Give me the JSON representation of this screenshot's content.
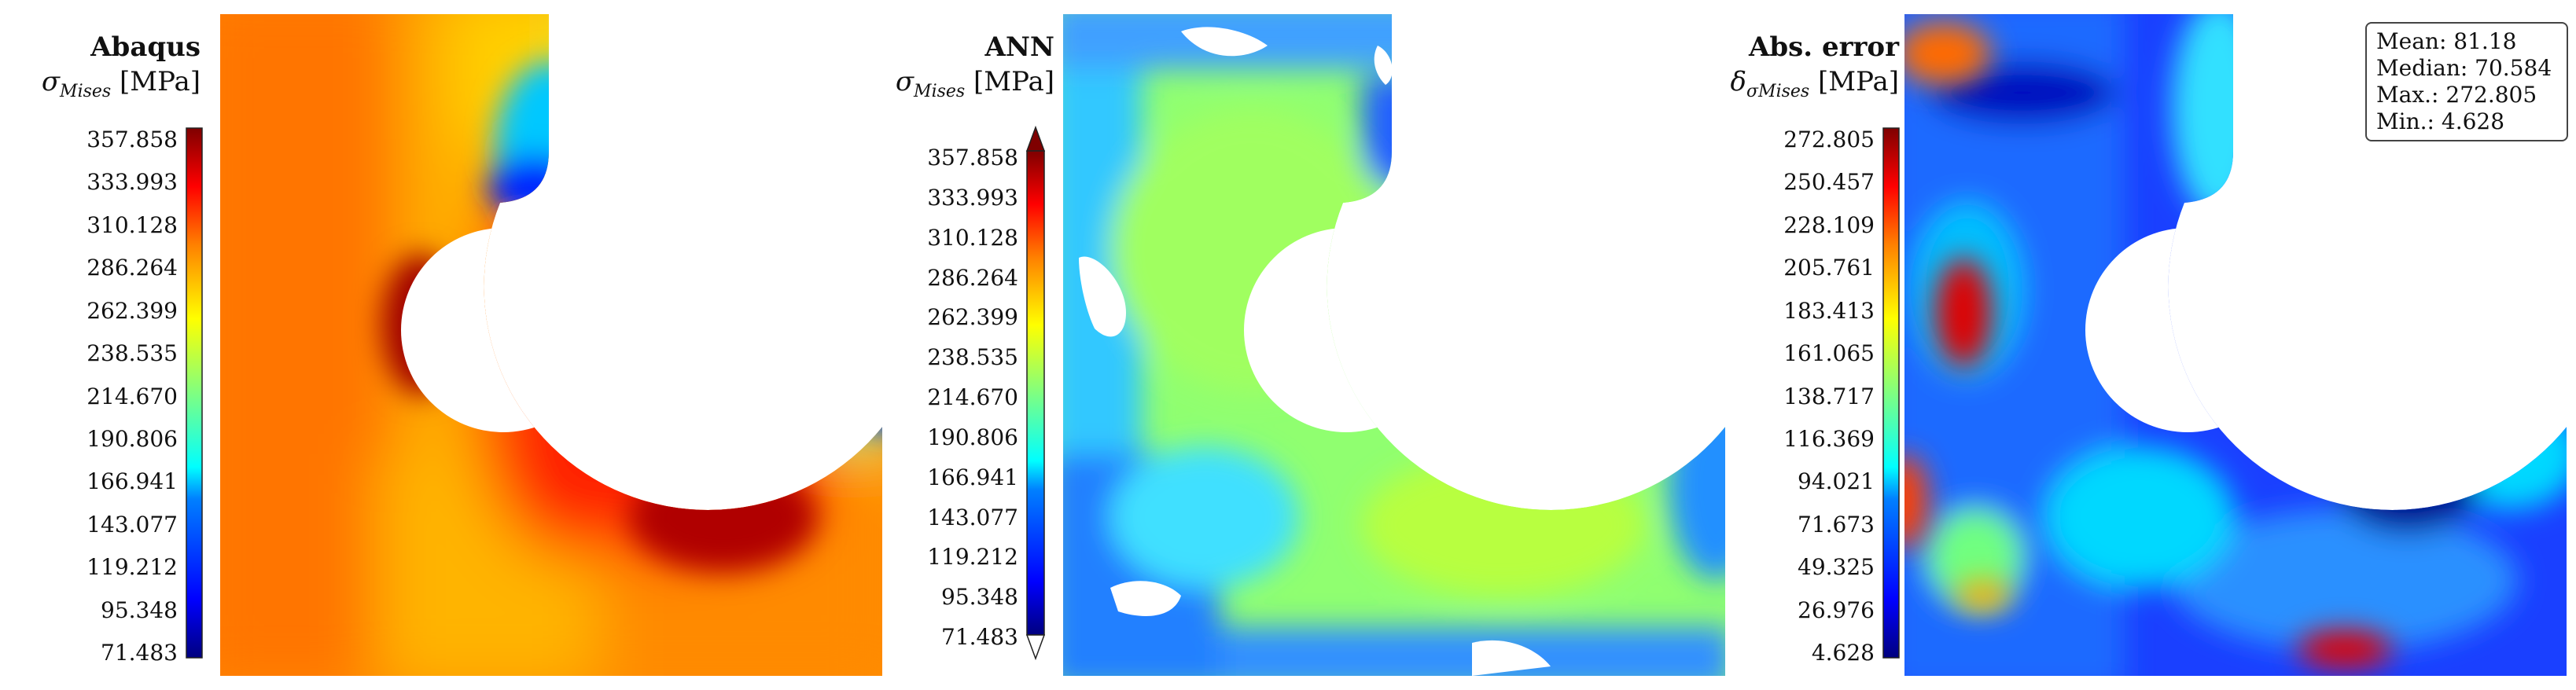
{
  "colors": {
    "jet": [
      "#00007f",
      "#0000ff",
      "#0080ff",
      "#00ffff",
      "#80ff80",
      "#ffff00",
      "#ff8000",
      "#ff0000",
      "#7f0000"
    ]
  },
  "panels": [
    {
      "id": "abaqus",
      "title": "Abaqus",
      "quantity": {
        "symbol": "σ",
        "sub": "Mises",
        "unit": "[MPa]"
      },
      "ticks": [
        "357.858",
        "333.993",
        "310.128",
        "286.264",
        "262.399",
        "238.535",
        "214.670",
        "190.806",
        "166.941",
        "143.077",
        "119.212",
        "95.348",
        "71.483"
      ],
      "extend_arrows": false
    },
    {
      "id": "ann",
      "title": "ANN",
      "quantity": {
        "symbol": "σ",
        "sub": "Mises",
        "unit": "[MPa]"
      },
      "ticks": [
        "357.858",
        "333.993",
        "310.128",
        "286.264",
        "262.399",
        "238.535",
        "214.670",
        "190.806",
        "166.941",
        "143.077",
        "119.212",
        "95.348",
        "71.483"
      ],
      "extend_arrows": true
    },
    {
      "id": "error",
      "title": "Abs. error",
      "quantity": {
        "symbol": "δ",
        "sub": "σMises",
        "unit": "[MPa]"
      },
      "ticks": [
        "272.805",
        "250.457",
        "228.109",
        "205.761",
        "183.413",
        "161.065",
        "138.717",
        "116.369",
        "94.021",
        "71.673",
        "49.325",
        "26.976",
        "4.628"
      ],
      "extend_arrows": false
    }
  ],
  "stats": {
    "mean": "Mean: 81.18",
    "median": "Median: 70.584",
    "max": "Max.: 272.805",
    "min": "Min.: 4.628"
  },
  "chart_data": [
    {
      "type": "heatmap",
      "title": "Abaqus",
      "colorbar_label": "σMises [MPa]",
      "colormap": "jet",
      "range": [
        71.483,
        357.858
      ],
      "colorbar_ticks": [
        357.858,
        333.993,
        310.128,
        286.264,
        262.399,
        238.535,
        214.67,
        190.806,
        166.941,
        143.077,
        119.212,
        95.348,
        71.483
      ]
    },
    {
      "type": "heatmap",
      "title": "ANN",
      "colorbar_label": "σMises [MPa]",
      "colormap": "jet",
      "range": [
        71.483,
        357.858
      ],
      "colorbar_ticks": [
        357.858,
        333.993,
        310.128,
        286.264,
        262.399,
        238.535,
        214.67,
        190.806,
        166.941,
        143.077,
        119.212,
        95.348,
        71.483
      ]
    },
    {
      "type": "heatmap",
      "title": "Abs. error",
      "colorbar_label": "δσMises [MPa]",
      "colormap": "jet",
      "range": [
        4.628,
        272.805
      ],
      "colorbar_ticks": [
        272.805,
        250.457,
        228.109,
        205.761,
        183.413,
        161.065,
        138.717,
        116.369,
        94.021,
        71.673,
        49.325,
        26.976,
        4.628
      ],
      "stats": {
        "mean": 81.18,
        "median": 70.584,
        "max": 272.805,
        "min": 4.628
      }
    }
  ]
}
